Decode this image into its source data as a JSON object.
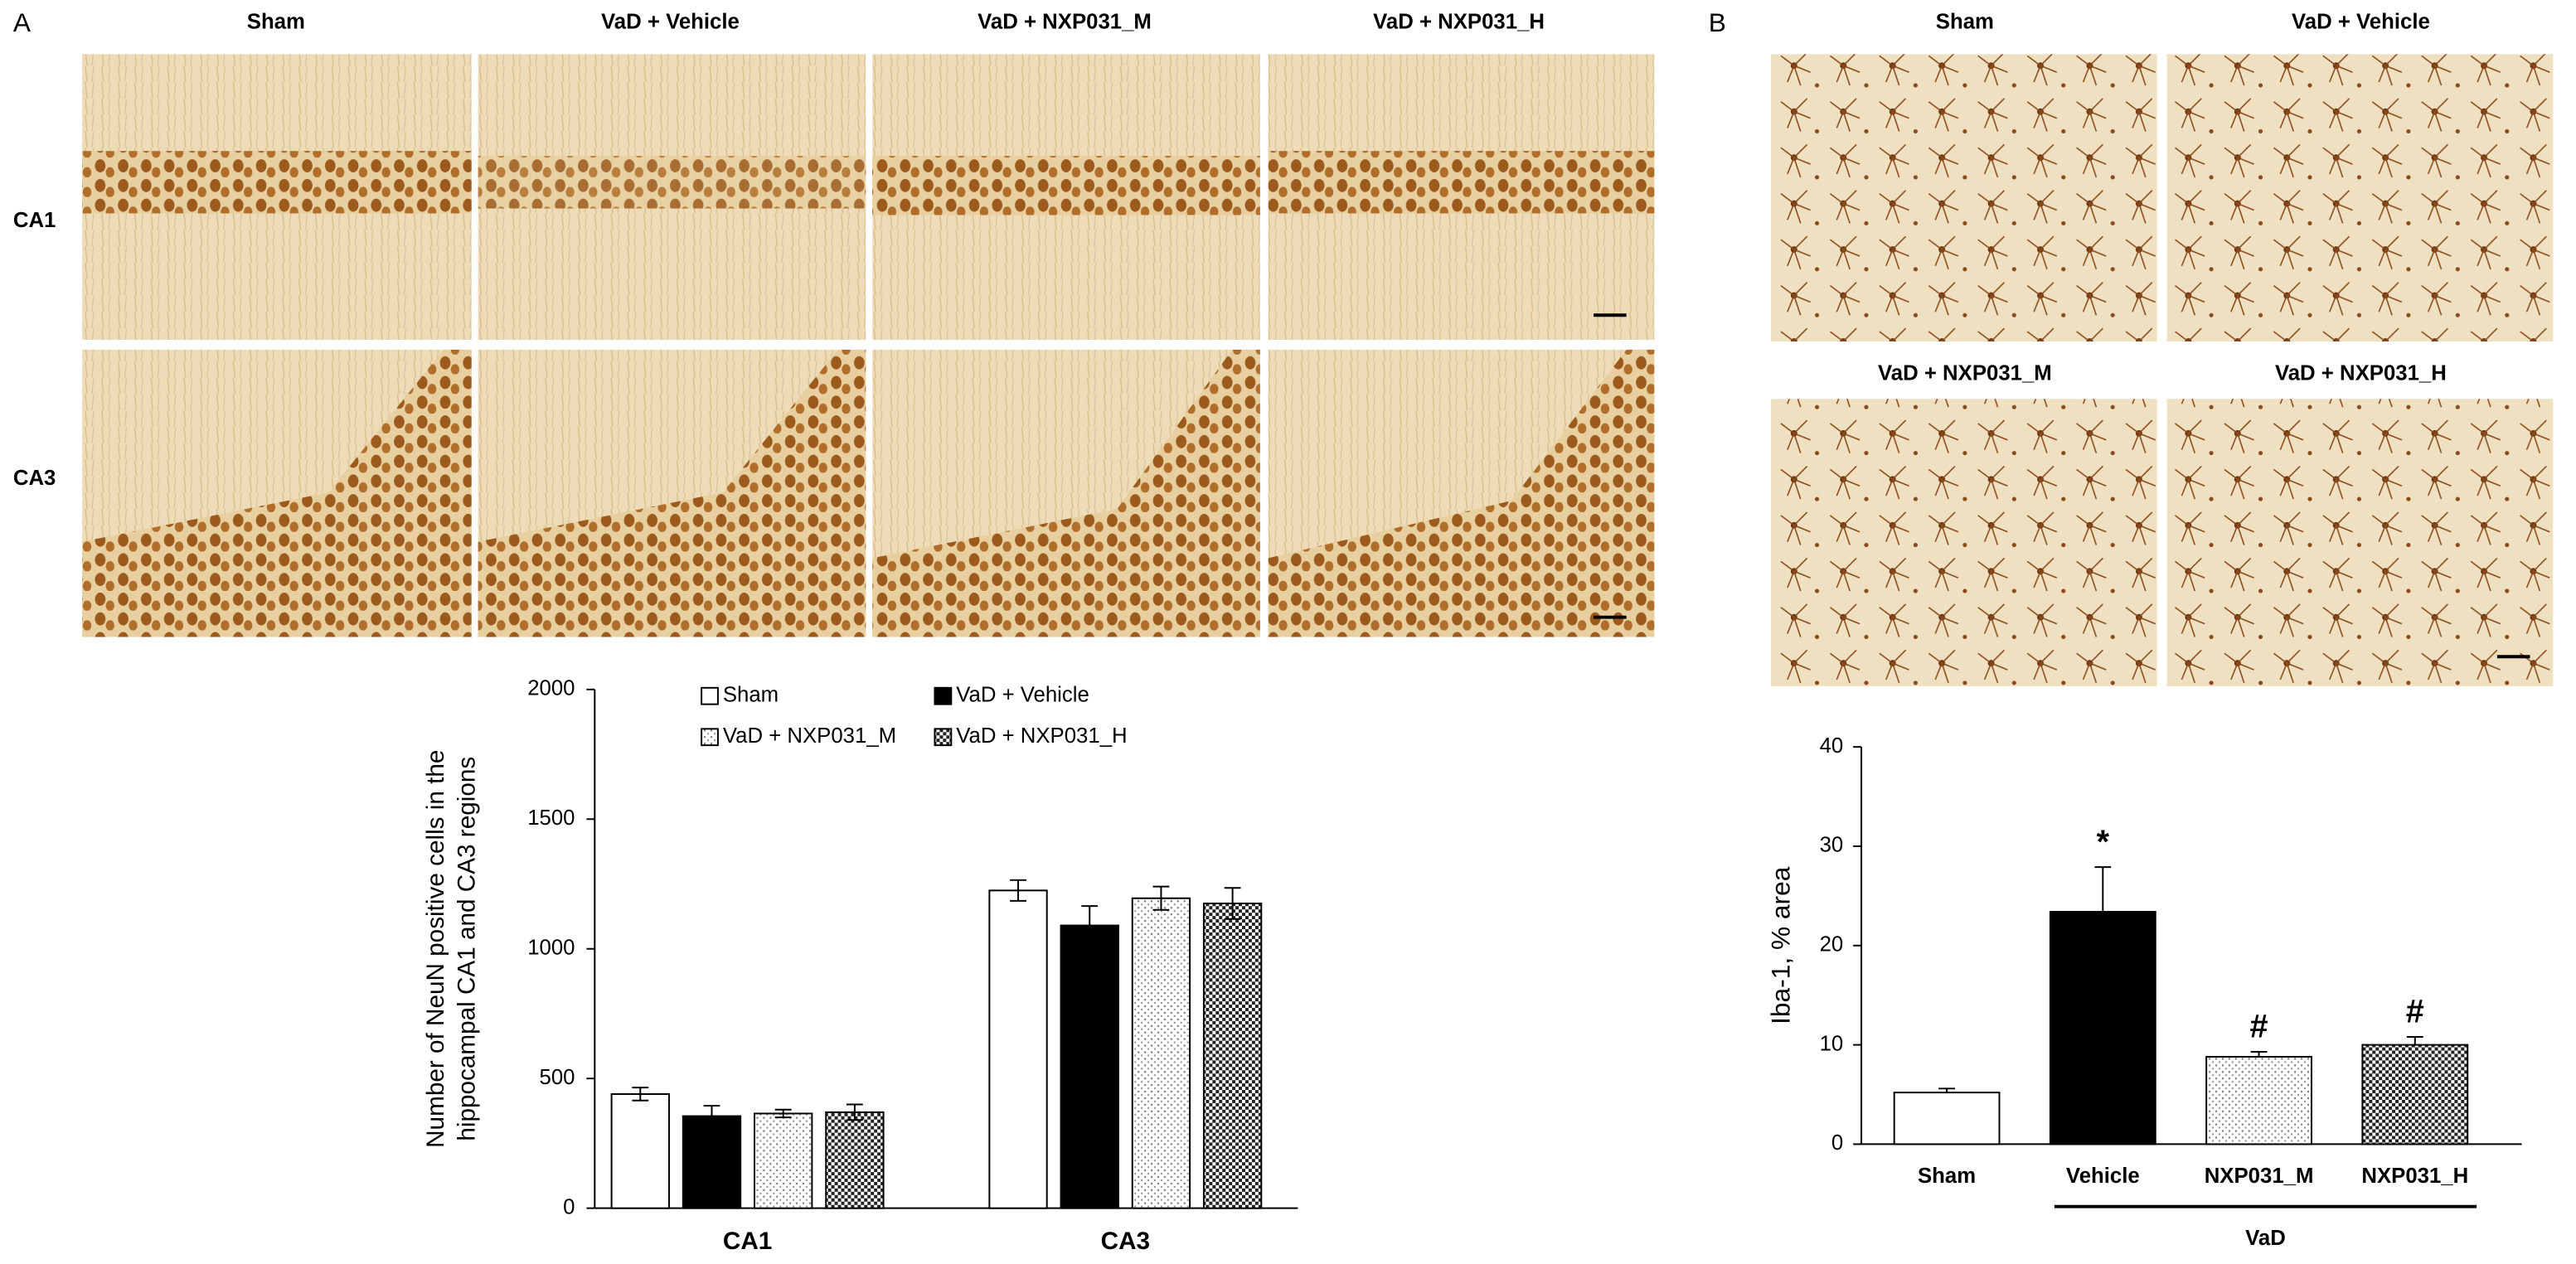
{
  "figure": {
    "panel_a": {
      "label": "A",
      "columns": [
        "Sham",
        "VaD + Vehicle",
        "VaD + NXP031_M",
        "VaD + NXP031_H"
      ],
      "rows": [
        "CA1",
        "CA3"
      ]
    },
    "panel_b": {
      "label": "B",
      "headers": [
        "Sham",
        "VaD + Vehicle",
        "VaD + NXP031_M",
        "VaD + NXP031_H"
      ]
    }
  },
  "chart_data": [
    {
      "type": "bar",
      "ylabel": [
        "Number of NeuN positive cells in the",
        "hippocampal CA1 and CA3 regions"
      ],
      "categories": [
        "CA1",
        "CA3"
      ],
      "series": [
        {
          "name": "Sham",
          "color": "#ffffff",
          "pattern": "none",
          "values": [
            440,
            1225
          ],
          "errors": [
            25,
            40
          ]
        },
        {
          "name": "VaD + Vehicle",
          "color": "#000000",
          "pattern": "none",
          "values": [
            355,
            1090
          ],
          "errors": [
            40,
            75
          ]
        },
        {
          "name": "VaD + NXP031_M",
          "color": "#ffffff",
          "pattern": "dots",
          "values": [
            365,
            1195
          ],
          "errors": [
            15,
            45
          ]
        },
        {
          "name": "VaD + NXP031_H",
          "color": "#ffffff",
          "pattern": "checker",
          "values": [
            370,
            1175
          ],
          "errors": [
            30,
            60
          ]
        }
      ],
      "ylim": [
        0,
        2000
      ],
      "yticks": [
        0,
        500,
        1000,
        1500,
        2000
      ],
      "grid": false
    },
    {
      "type": "bar",
      "ylabel": "Iba-1, % area",
      "categories": [
        "Sham",
        "Vehicle",
        "NXP031_M",
        "NXP031_H"
      ],
      "values": [
        5.2,
        23.4,
        8.8,
        10.0
      ],
      "errors": [
        0.4,
        4.5,
        0.5,
        0.8
      ],
      "colors": [
        "#ffffff",
        "#000000",
        "#ffffff",
        "#ffffff"
      ],
      "patterns": [
        "none",
        "none",
        "dots",
        "checker"
      ],
      "value_annotations": [
        null,
        "*",
        "#",
        "#"
      ],
      "group_label": "VaD",
      "group_members": [
        "Vehicle",
        "NXP031_M",
        "NXP031_H"
      ],
      "ylim": [
        0,
        40
      ],
      "yticks": [
        0,
        10,
        20,
        30,
        40
      ],
      "grid": false
    }
  ]
}
